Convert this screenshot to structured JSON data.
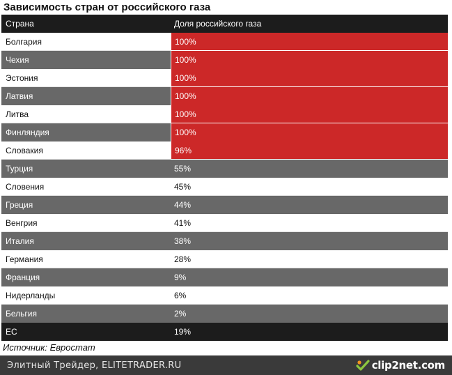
{
  "title": "Зависимость стран от российского газа",
  "table": {
    "headers": [
      "Страна",
      "Доля российского газа"
    ],
    "rows": [
      {
        "country": "Болгария",
        "share": "100%"
      },
      {
        "country": "Чехия",
        "share": "100%"
      },
      {
        "country": "Эстония",
        "share": "100%"
      },
      {
        "country": "Латвия",
        "share": "100%"
      },
      {
        "country": "Литва",
        "share": "100%"
      },
      {
        "country": "Финляндия",
        "share": "100%"
      },
      {
        "country": "Словакия",
        "share": "96%"
      },
      {
        "country": "Турция",
        "share": "55%"
      },
      {
        "country": "Словения",
        "share": "45%"
      },
      {
        "country": "Греция",
        "share": "44%"
      },
      {
        "country": "Венгрия",
        "share": "41%"
      },
      {
        "country": "Италия",
        "share": "38%"
      },
      {
        "country": "Германия",
        "share": "28%"
      },
      {
        "country": "Франция",
        "share": "9%"
      },
      {
        "country": "Нидерланды",
        "share": "6%"
      },
      {
        "country": "Бельгия",
        "share": "2%"
      }
    ],
    "total": {
      "country": "ЕС",
      "share": "19%"
    }
  },
  "source": "Источник: Евростат",
  "footer": {
    "text": "Элитный Трейдер, ELITETRADER.RU",
    "brand": "clip2net.com",
    "brand_icon": "clip2net-logo-icon"
  },
  "colors": {
    "highlight": "#cc2828",
    "header": "#1c1c1c",
    "dark_row": "#686868",
    "footer": "#3a3a3a"
  }
}
